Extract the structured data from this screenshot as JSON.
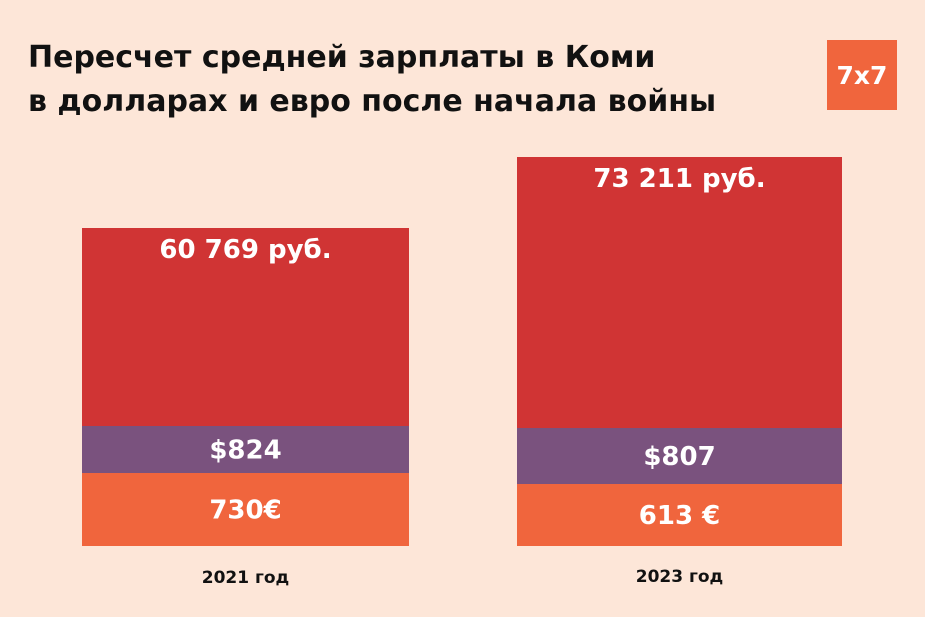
{
  "header": {
    "title_line1": "Пересчет средней зарплаты в Коми",
    "title_line2": "в долларах и евро после начала войны",
    "logo_text": "7x7"
  },
  "chart_data": {
    "type": "bar",
    "stacked": true,
    "categories": [
      "2021 год",
      "2023 год"
    ],
    "series": [
      {
        "values": [
          730,
          613
        ],
        "labels": [
          "730€",
          "613 €"
        ],
        "color": "#f0653d"
      },
      {
        "values": [
          824,
          807
        ],
        "labels": [
          "$824",
          "$807"
        ],
        "color": "#7a527e"
      },
      {
        "values": [
          60769,
          73211
        ],
        "labels": [
          "60 769 руб.",
          "73 211 руб."
        ],
        "color": "#d03434"
      }
    ],
    "legend": "none",
    "grid": false
  },
  "colors": {
    "background": "#fde6d8",
    "accent": "#f0653d"
  }
}
